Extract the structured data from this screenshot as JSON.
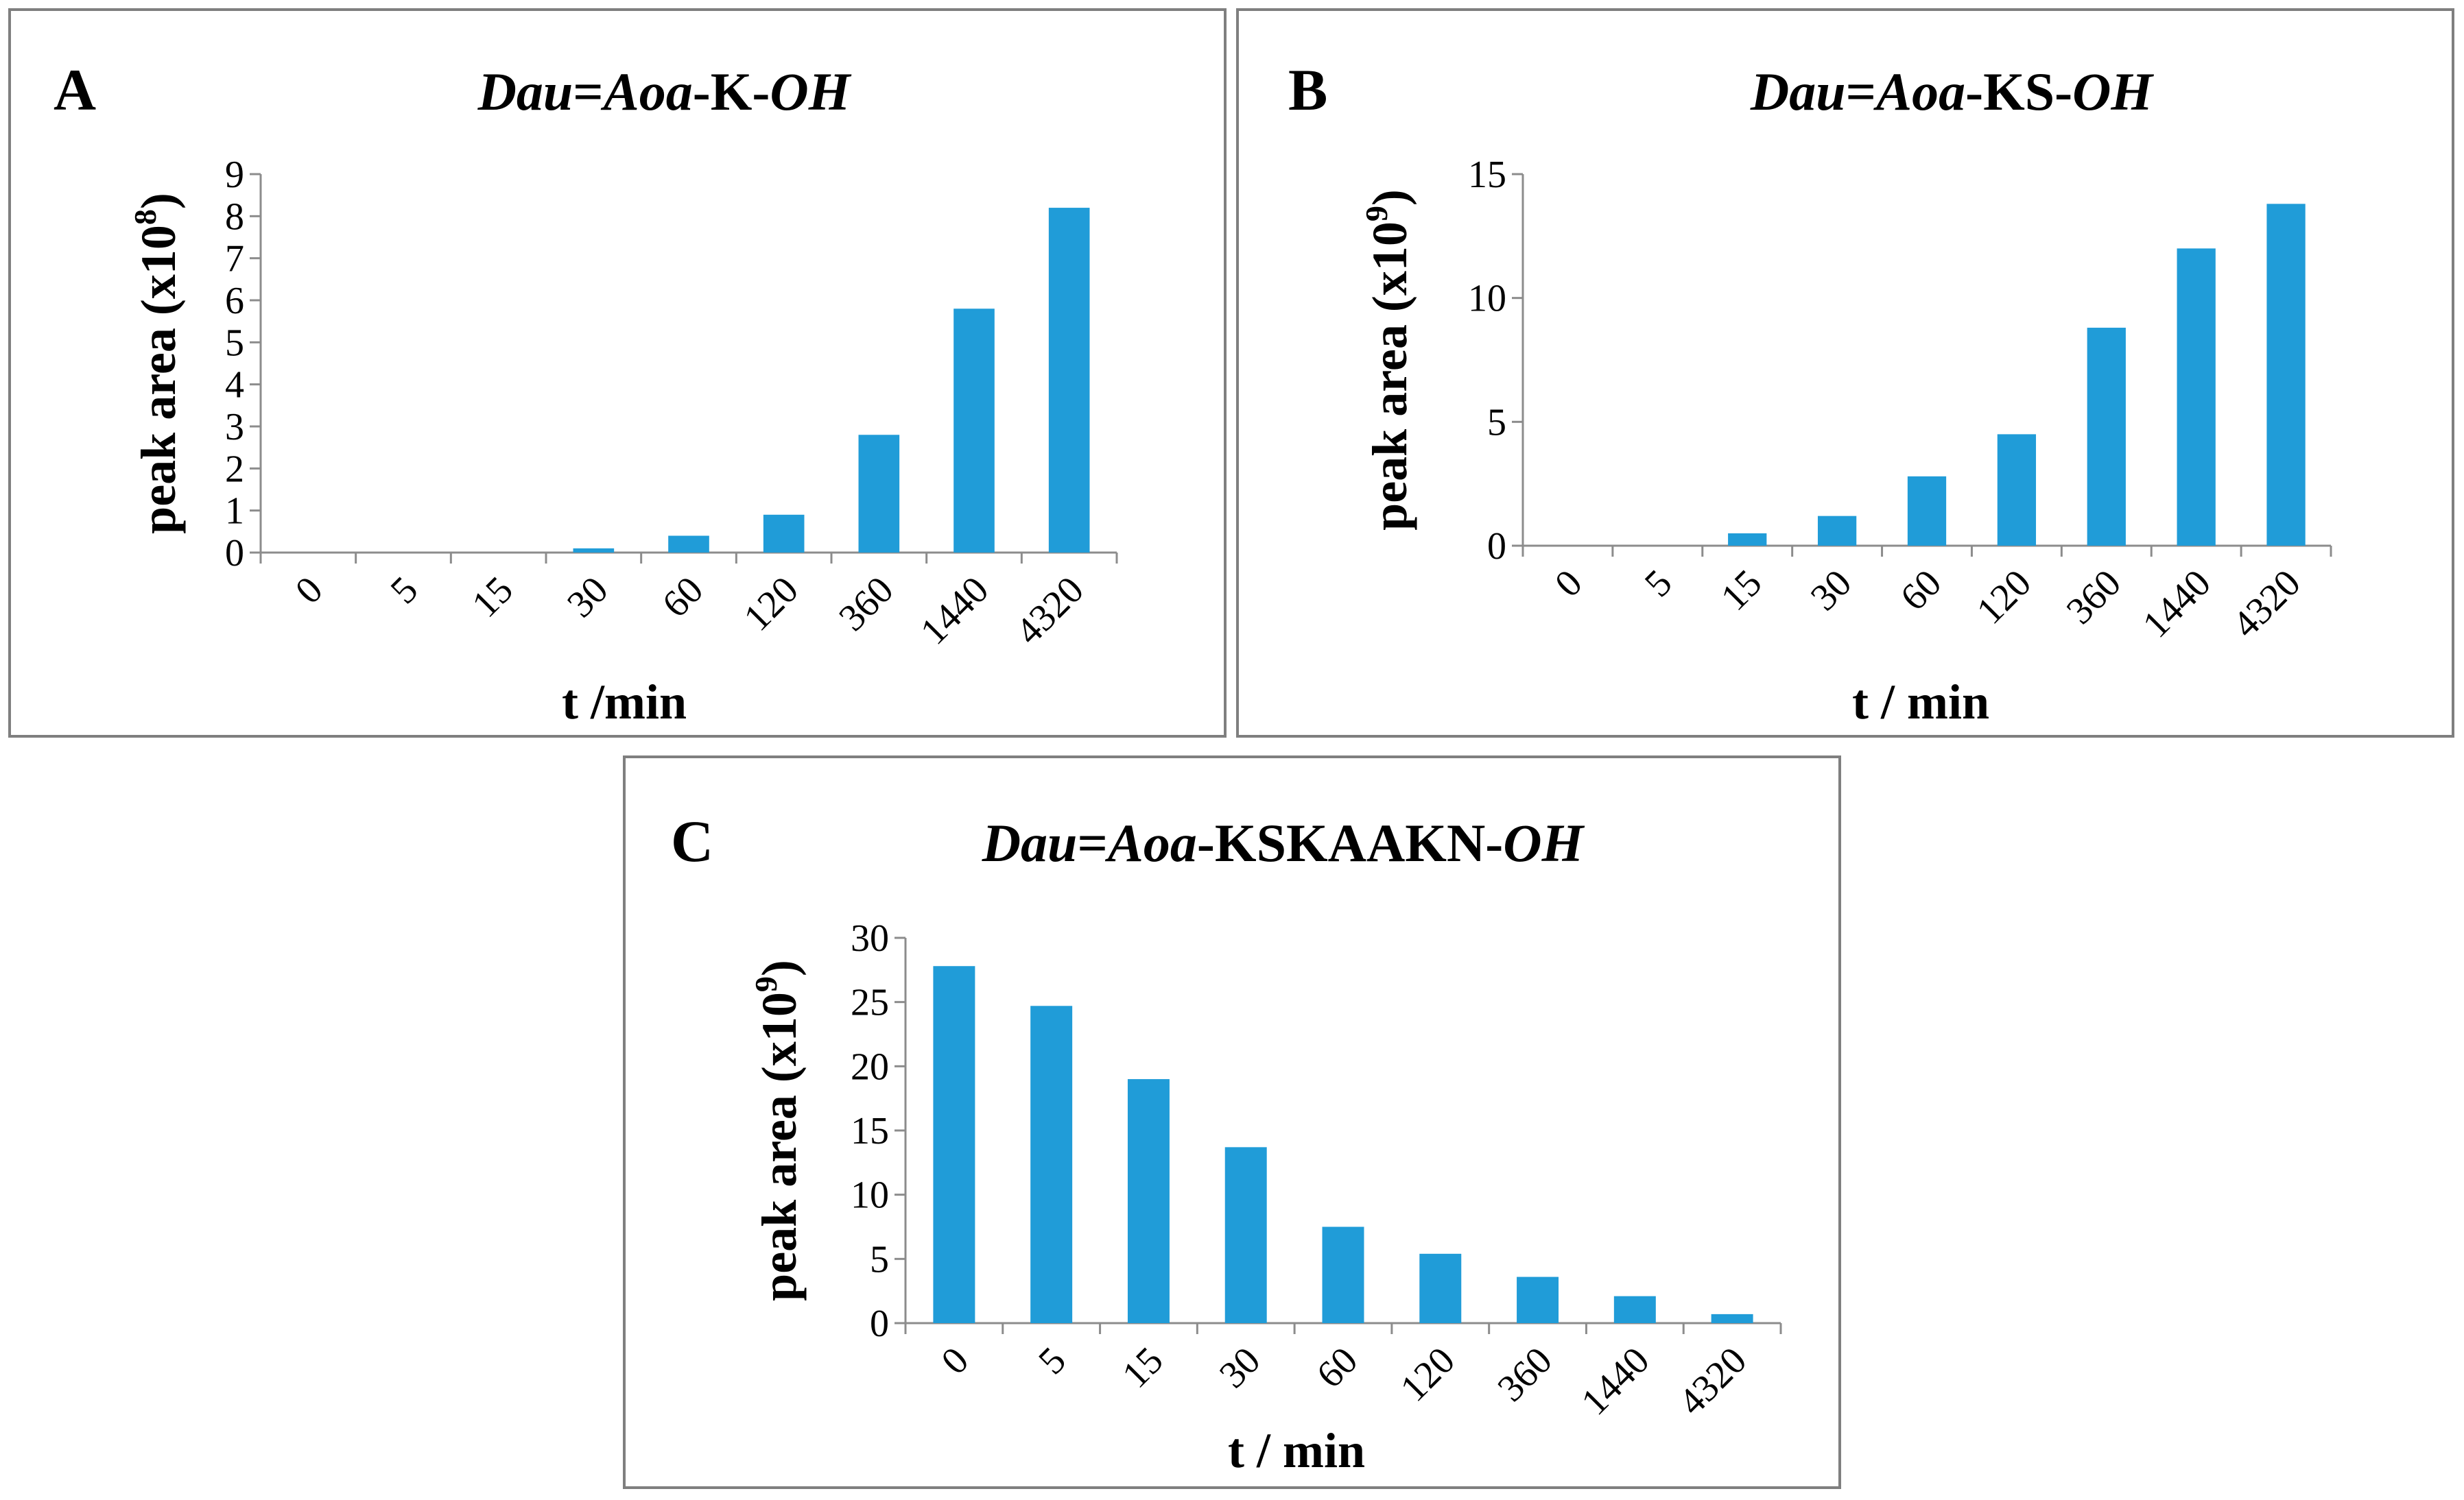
{
  "colors": {
    "bar": "#209cd8",
    "axis": "#8c8c8c",
    "panel_border": "#7f7f7f"
  },
  "chart_data": [
    {
      "panel_letter": "A",
      "type": "bar",
      "title": {
        "part1": "Dau",
        "part2": "=",
        "part3": "Aoa",
        "part4": "-K-",
        "part5": "OH"
      },
      "categories": [
        "0",
        "5",
        "15",
        "30",
        "60",
        "120",
        "360",
        "1440",
        "4320"
      ],
      "values": [
        0,
        0,
        0,
        0.1,
        0.4,
        0.9,
        2.8,
        5.8,
        8.2
      ],
      "ylim": [
        0,
        9
      ],
      "yticks": [
        0,
        1,
        2,
        3,
        4,
        5,
        6,
        7,
        8,
        9
      ],
      "ylabel": {
        "main": "peak area (x10",
        "exp": "8",
        "close": ")"
      },
      "xlabel": "t /min"
    },
    {
      "panel_letter": "B",
      "type": "bar",
      "title": {
        "part1": "Dau",
        "part2": "=",
        "part3": "Aoa",
        "part4": "-KS-",
        "part5": "OH"
      },
      "categories": [
        "0",
        "5",
        "15",
        "30",
        "60",
        "120",
        "360",
        "1440",
        "4320"
      ],
      "values": [
        0,
        0,
        0.5,
        1.2,
        2.8,
        4.5,
        8.8,
        12.0,
        13.8
      ],
      "ylim": [
        0,
        15
      ],
      "yticks": [
        0,
        5,
        10,
        15
      ],
      "ylabel": {
        "main": "peak area (x10",
        "exp": "9",
        "close": ")"
      },
      "xlabel": "t / min"
    },
    {
      "panel_letter": "C",
      "type": "bar",
      "title": {
        "part1": "Dau",
        "part2": "=",
        "part3": "Aoa",
        "part4": "-KSKAAKN-",
        "part5": "OH"
      },
      "categories": [
        "0",
        "5",
        "15",
        "30",
        "60",
        "120",
        "360",
        "1440",
        "4320"
      ],
      "values": [
        27.8,
        24.7,
        19.0,
        13.7,
        7.5,
        5.4,
        3.6,
        2.1,
        0.7
      ],
      "ylim": [
        0,
        30
      ],
      "yticks": [
        0,
        5,
        10,
        15,
        20,
        25,
        30
      ],
      "ylabel": {
        "main": "peak area (x10",
        "exp": "9",
        "close": ")"
      },
      "xlabel": "t / min"
    }
  ]
}
